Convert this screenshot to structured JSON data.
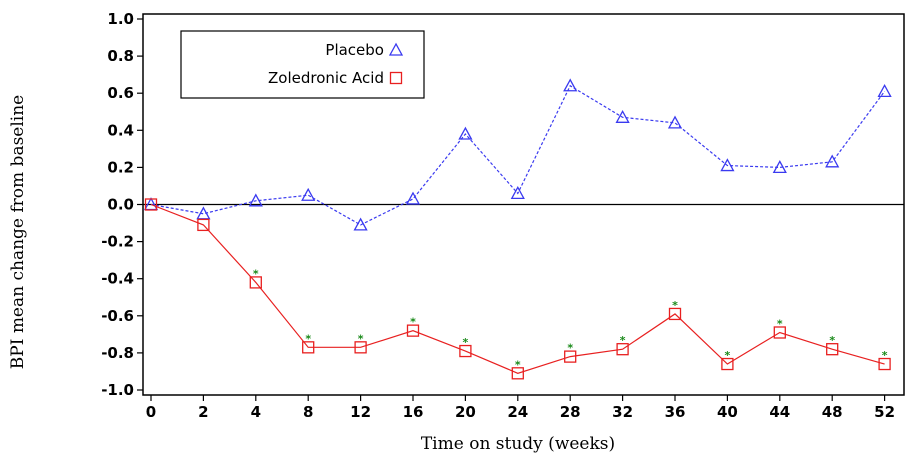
{
  "chart_data": {
    "type": "line",
    "xlabel": "Time on study (weeks)",
    "ylabel": "BPI mean change from baseline",
    "x": [
      0,
      2,
      4,
      8,
      12,
      16,
      20,
      24,
      28,
      32,
      36,
      40,
      44,
      48,
      52
    ],
    "x_tick_labels": [
      "0",
      "2",
      "4",
      "8",
      "12",
      "16",
      "20",
      "24",
      "28",
      "32",
      "36",
      "40",
      "44",
      "48",
      "52"
    ],
    "y_ticks": [
      1.0,
      0.8,
      0.6,
      0.4,
      0.2,
      0.0,
      -0.2,
      -0.4,
      -0.6,
      -0.8,
      -1.0
    ],
    "y_tick_labels": [
      "1.0",
      "0.8",
      "0.6",
      "0.4",
      "0.2",
      "0.0",
      "-0.2",
      "-0.4",
      "-0.6",
      "-0.8",
      "-1.0"
    ],
    "ylim": [
      -1.0,
      1.0
    ],
    "reference_line_y": 0.0,
    "legend_position": "top-left",
    "series": [
      {
        "name": "Placebo",
        "color": "#3a3af0",
        "marker": "triangle",
        "line_style": "dashed",
        "values": [
          0.0,
          -0.05,
          0.02,
          0.05,
          -0.11,
          0.03,
          0.38,
          0.06,
          0.64,
          0.47,
          0.44,
          0.21,
          0.2,
          0.23,
          0.61
        ]
      },
      {
        "name": "Zoledronic Acid",
        "color": "#e82020",
        "marker": "square",
        "line_style": "solid",
        "values": [
          0.0,
          -0.11,
          -0.42,
          -0.77,
          -0.77,
          -0.68,
          -0.79,
          -0.91,
          -0.82,
          -0.78,
          -0.59,
          -0.86,
          -0.69,
          -0.78,
          -0.86
        ],
        "significance_marks": [
          false,
          false,
          true,
          true,
          true,
          true,
          true,
          true,
          true,
          true,
          true,
          true,
          true,
          true,
          true
        ]
      }
    ],
    "significance_marker": "*",
    "significance_color": "#1a8a1a"
  }
}
